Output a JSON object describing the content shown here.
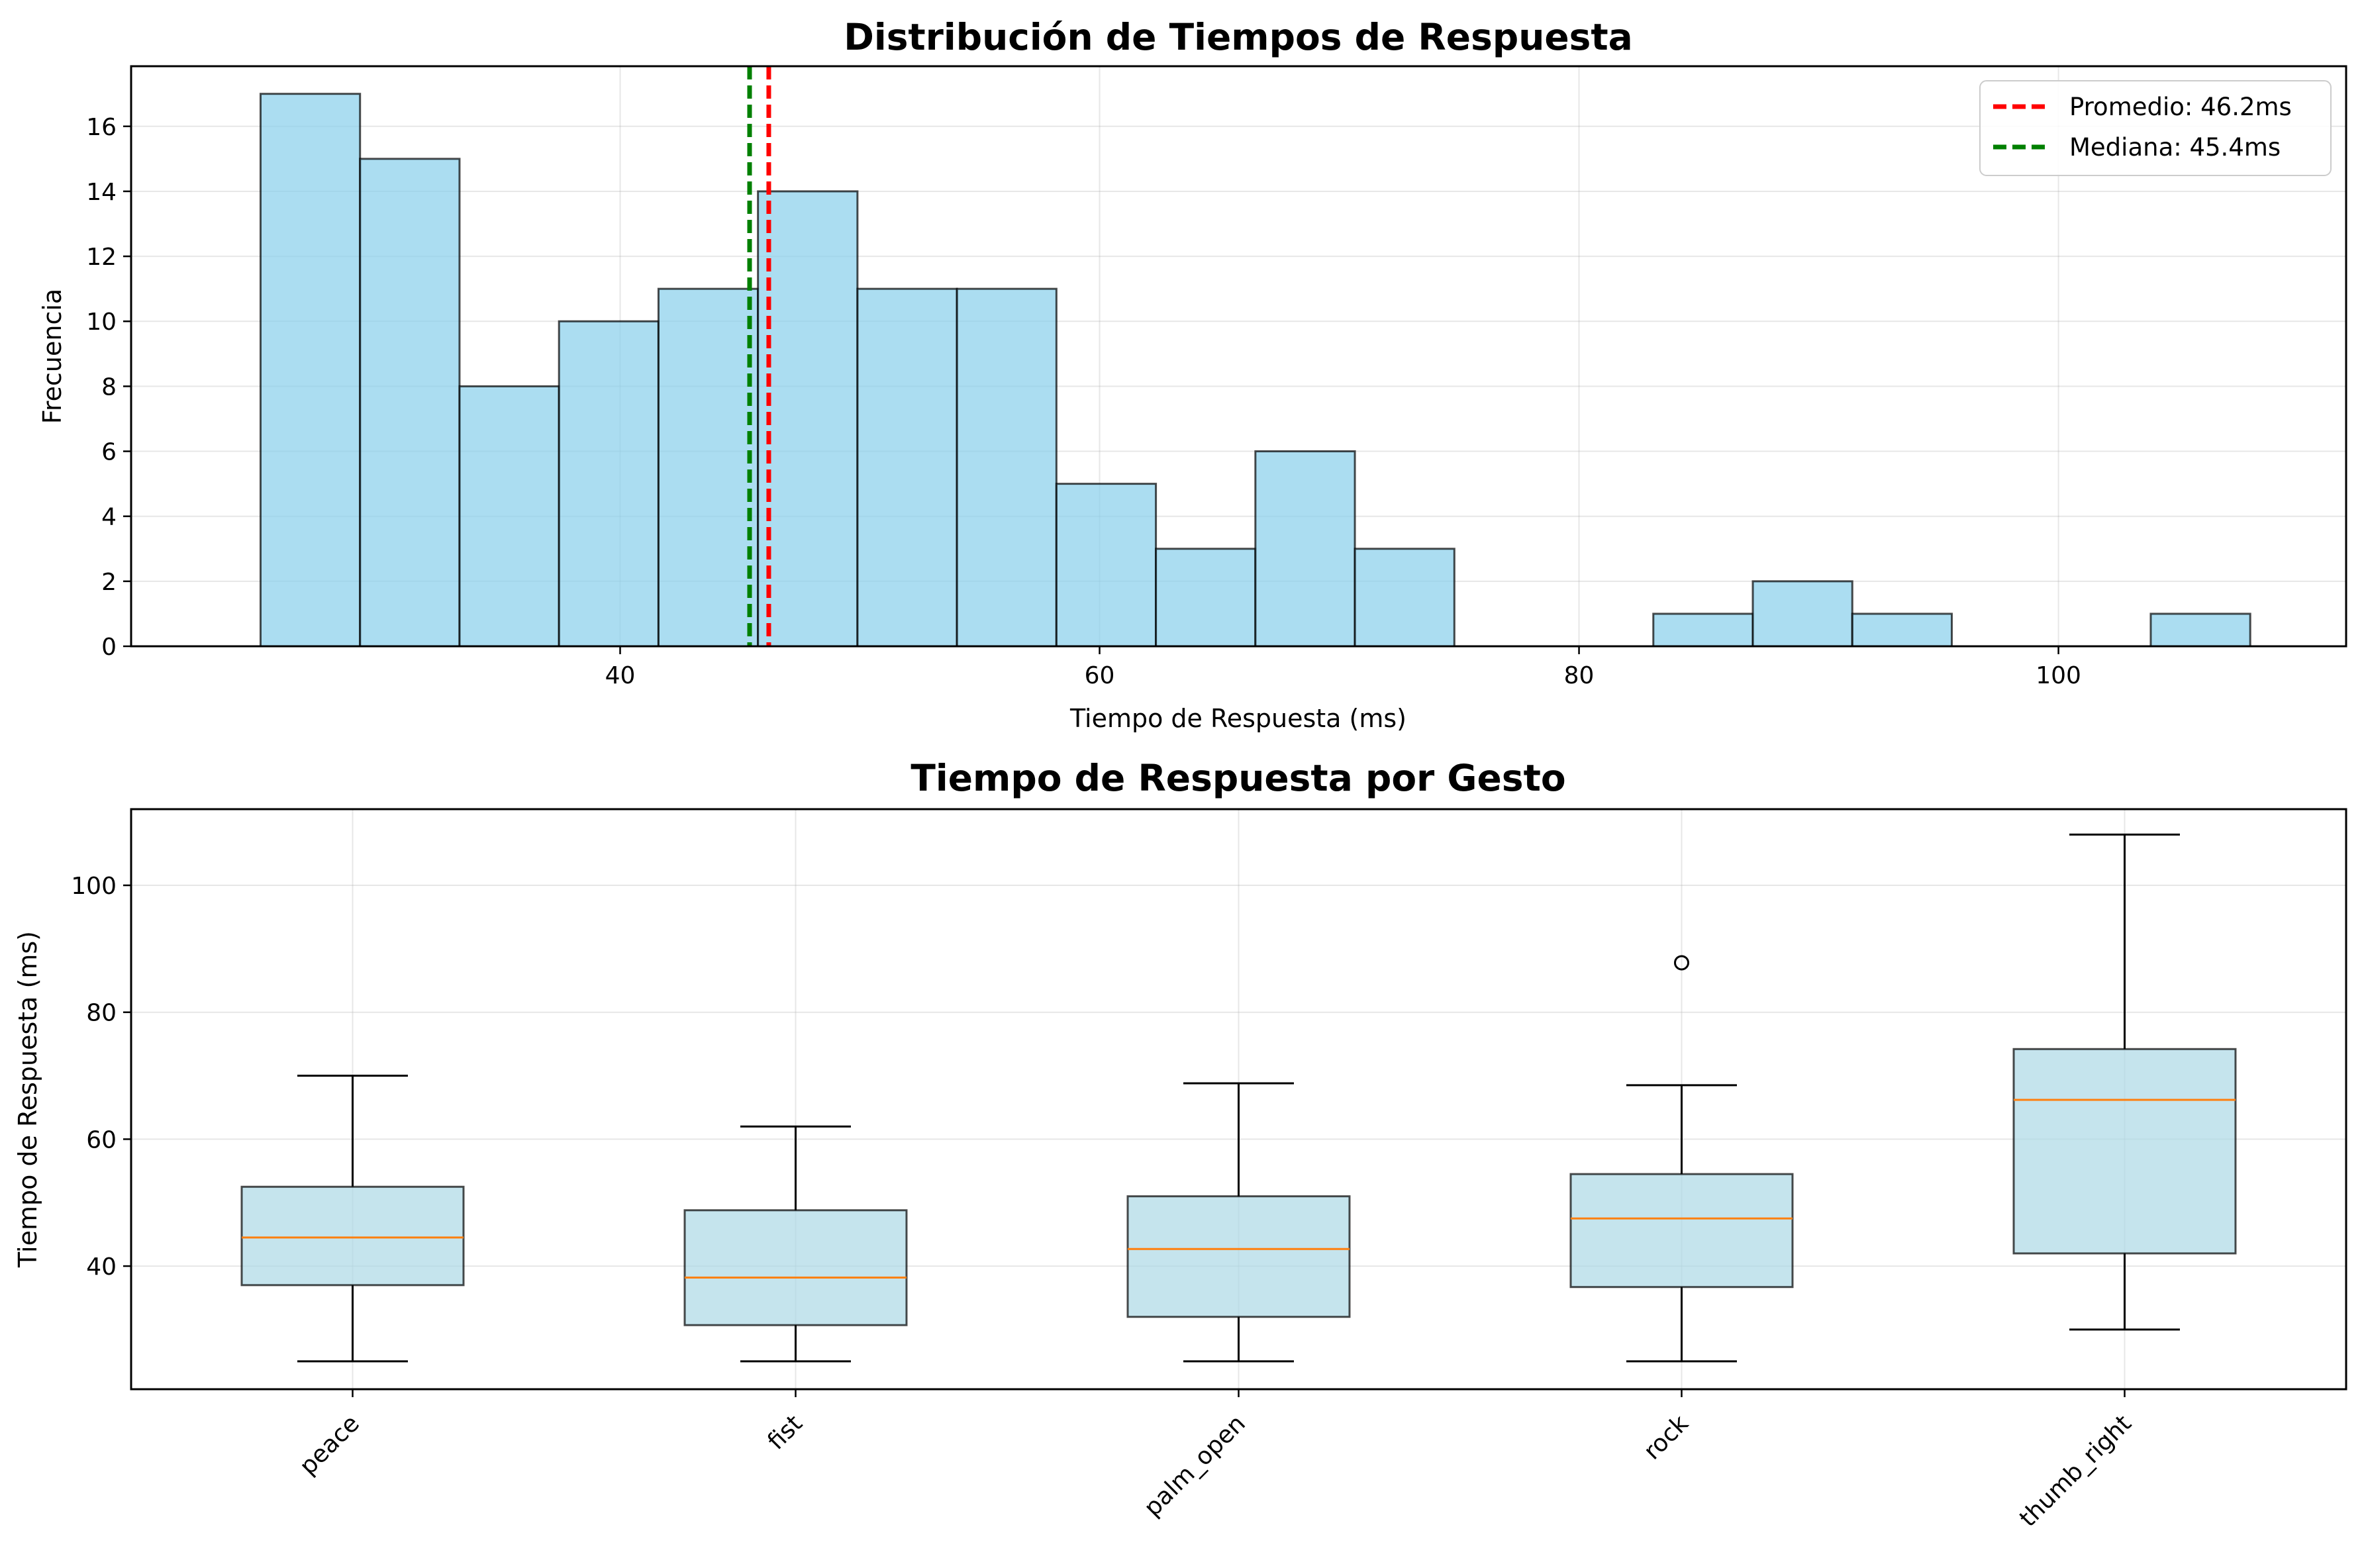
{
  "chart_data": [
    {
      "type": "bar",
      "subtype": "histogram",
      "title": "Distribución de Tiempos de Respuesta",
      "xlabel": "Tiempo de Respuesta (ms)",
      "ylabel": "Frecuencia",
      "xlim": [
        19.6,
        112.0
      ],
      "ylim": [
        0,
        17.85
      ],
      "xticks": [
        40,
        60,
        80,
        100
      ],
      "yticks": [
        0,
        2,
        4,
        6,
        8,
        10,
        12,
        14,
        16
      ],
      "bin_edges": [
        25.0,
        29.15,
        33.3,
        37.45,
        41.6,
        45.75,
        49.9,
        54.05,
        58.2,
        62.35,
        66.5,
        70.65,
        74.8,
        78.95,
        83.1,
        87.25,
        91.4,
        95.55,
        99.7,
        103.85,
        108.0
      ],
      "counts": [
        17,
        15,
        8,
        10,
        11,
        14,
        11,
        11,
        5,
        3,
        6,
        3,
        0,
        0,
        1,
        2,
        1,
        0,
        0,
        1
      ],
      "bar_color": "#87CEEB",
      "grid": true,
      "reference_lines": [
        {
          "label": "Promedio: 46.2ms",
          "x": 46.2,
          "color": "#ff0000",
          "style": "dashed"
        },
        {
          "label": "Mediana: 45.4ms",
          "x": 45.4,
          "color": "#008000",
          "style": "dashed"
        }
      ],
      "legend_position": "top-right"
    },
    {
      "type": "box",
      "title": "Tiempo de Respuesta por Gesto",
      "xlabel": "",
      "ylabel": "Tiempo de Respuesta (ms)",
      "ylim": [
        20.6,
        112.0
      ],
      "yticks": [
        40,
        60,
        80,
        100
      ],
      "categories": [
        "peace",
        "fist",
        "palm_open",
        "rock",
        "thumb_right"
      ],
      "boxes": [
        {
          "whisker_low": 25.0,
          "q1": 37.0,
          "median": 44.5,
          "q3": 52.5,
          "whisker_high": 70.0,
          "outliers": []
        },
        {
          "whisker_low": 25.0,
          "q1": 30.7,
          "median": 38.2,
          "q3": 48.8,
          "whisker_high": 62.0,
          "outliers": []
        },
        {
          "whisker_low": 25.0,
          "q1": 32.0,
          "median": 42.7,
          "q3": 51.0,
          "whisker_high": 68.8,
          "outliers": []
        },
        {
          "whisker_low": 25.0,
          "q1": 36.7,
          "median": 47.5,
          "q3": 54.5,
          "whisker_high": 68.5,
          "outliers": [
            87.8
          ]
        },
        {
          "whisker_low": 30.0,
          "q1": 42.0,
          "median": 66.2,
          "q3": 74.2,
          "whisker_high": 108.0,
          "outliers": []
        }
      ],
      "box_color": "#ADD8E6",
      "median_color": "#ff7f0e",
      "grid": true,
      "tick_label_rotation": 45
    }
  ]
}
